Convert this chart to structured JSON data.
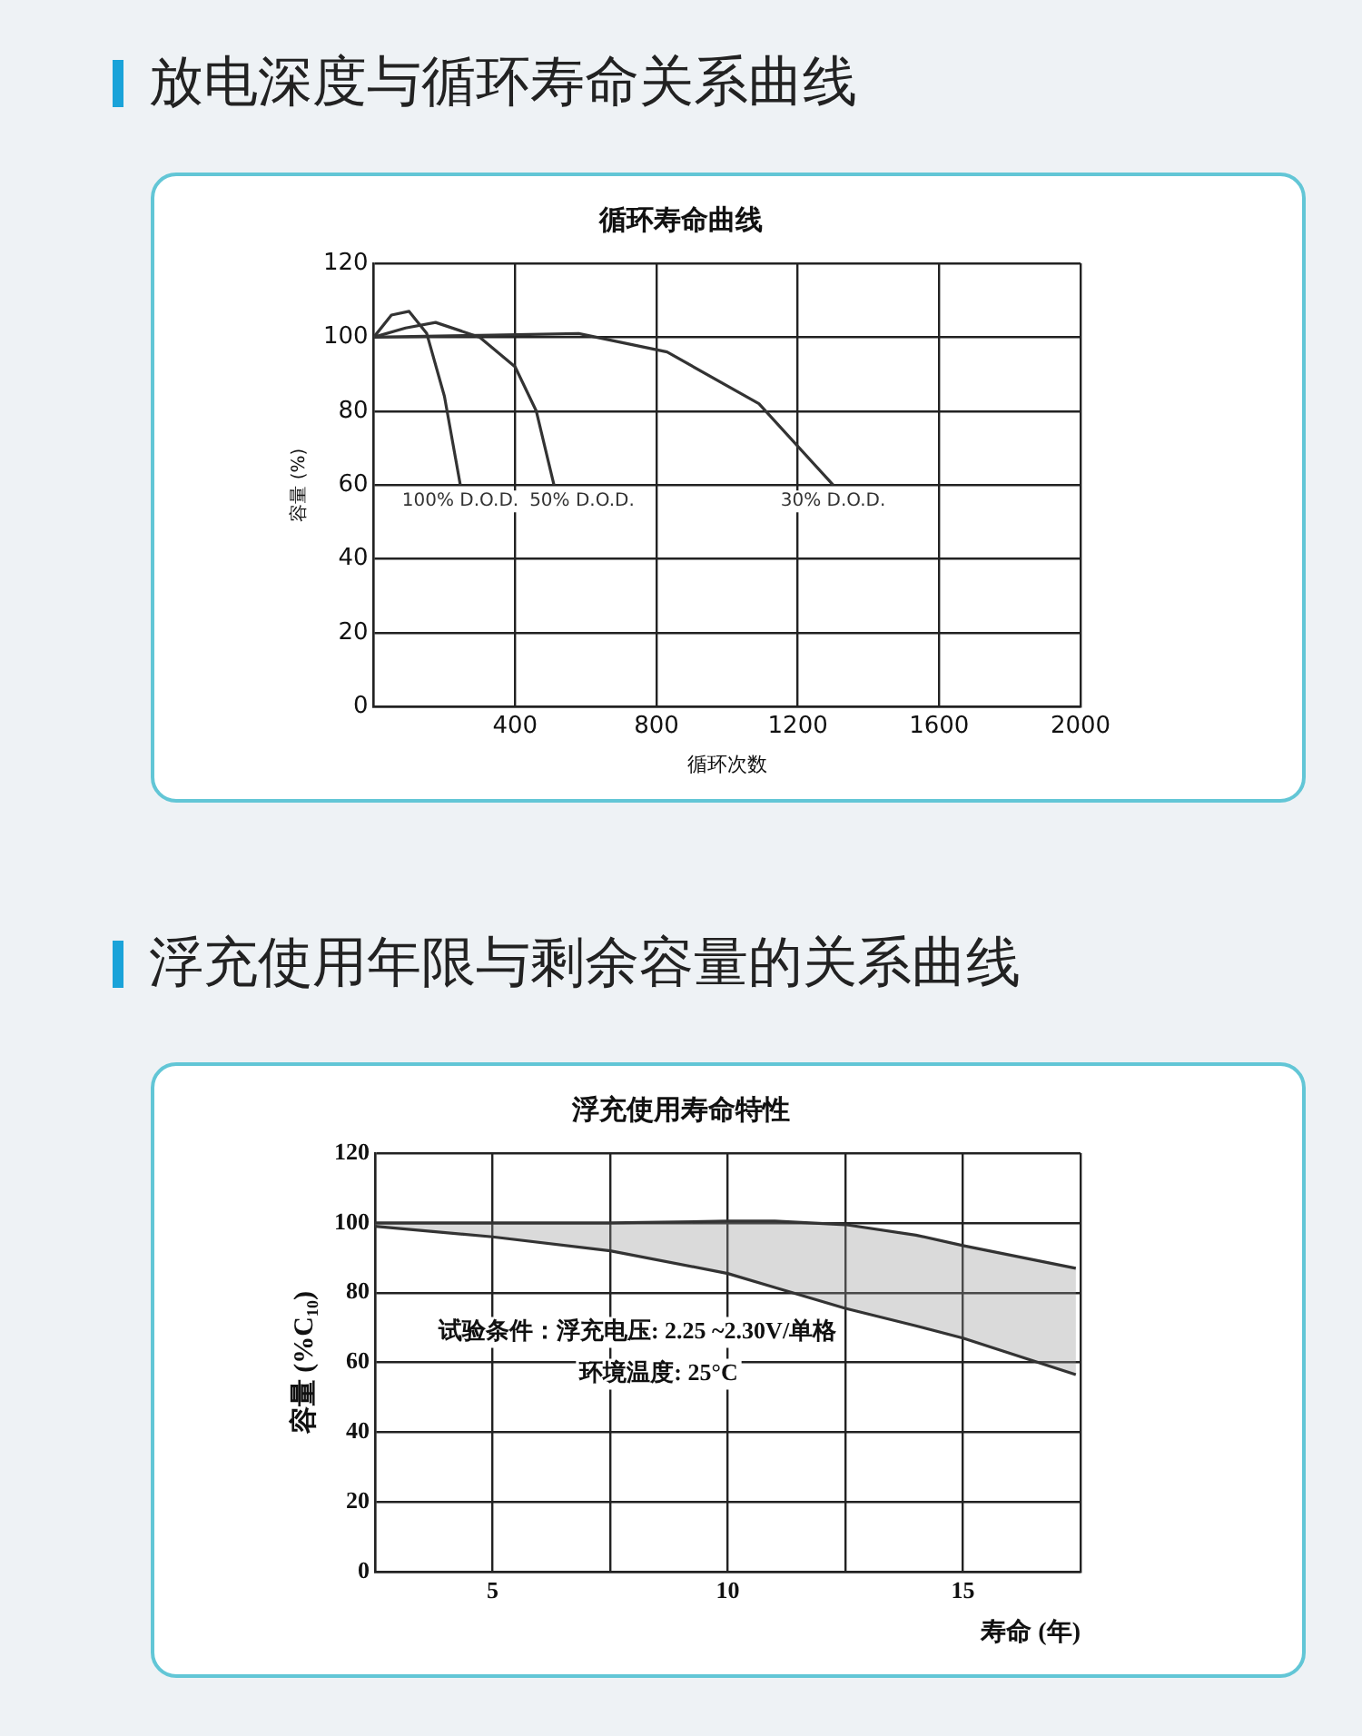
{
  "chart_data": [
    {
      "type": "line",
      "title": "放电深度与循环寿命关系曲线",
      "subtitle": "循环寿命曲线",
      "xlabel": "循环次数",
      "ylabel": "容量 (%)",
      "xlim": [
        0,
        2000
      ],
      "xticks": [
        {
          "value": 0,
          "label": null
        },
        400,
        800,
        1200,
        1600,
        2000
      ],
      "ylim": [
        0,
        120
      ],
      "yticks": [
        0,
        20,
        40,
        60,
        80,
        100,
        120
      ],
      "grid": true,
      "legend": false,
      "marker": "none",
      "line_style": "solid",
      "series": [
        {
          "name": "100% D.O.D.",
          "color": "#333333",
          "x": [
            0,
            50,
            100,
            150,
            200,
            245
          ],
          "values": [
            100,
            106,
            107,
            101,
            84,
            60
          ]
        },
        {
          "name": "50% D.O.D.",
          "color": "#333333",
          "x": [
            0,
            90,
            175,
            300,
            400,
            460,
            510
          ],
          "values": [
            100,
            102.5,
            104,
            100,
            92,
            80,
            60
          ]
        },
        {
          "name": "30% D.O.D.",
          "color": "#333333",
          "x": [
            0,
            300,
            580,
            830,
            1090,
            1300
          ],
          "values": [
            100,
            100.5,
            101,
            96,
            82,
            60
          ]
        }
      ]
    },
    {
      "type": "line",
      "title": "浮充使用年限与剩余容量的关系曲线",
      "subtitle": "浮充使用寿命特性",
      "xlabel": "寿命 (年)",
      "ylabel": "容量 (%C₁₀)",
      "xlim": [
        2.5,
        17.5
      ],
      "xticks": [
        {
          "value": 2.5,
          "label": null
        },
        5,
        {
          "value": 7.5,
          "label": null
        },
        10,
        {
          "value": 12.5,
          "label": null
        },
        15,
        {
          "value": 17.5,
          "label": null
        }
      ],
      "ylim": [
        0,
        120
      ],
      "yticks": [
        0,
        20,
        40,
        60,
        80,
        100,
        120
      ],
      "grid": true,
      "legend": false,
      "marker": "none",
      "line_style": "solid",
      "annotations": [
        "试验条件：浮充电压: 2.25 ~2.30V/单格",
        "环境温度: 25°C"
      ],
      "series": [
        {
          "color": "#333333",
          "x": [
            2.5,
            5,
            7.5,
            10,
            11,
            12.5,
            14,
            15,
            17.4
          ],
          "values": [
            100,
            100,
            100,
            100.5,
            100.5,
            99.5,
            96.5,
            93.5,
            87
          ],
          "lower": [
            99,
            96,
            92,
            85.5,
            81.5,
            75.5,
            70.5,
            67,
            56.5
          ],
          "upper": [
            100,
            100,
            100,
            100.5,
            100.5,
            99.5,
            96.5,
            93.5,
            87
          ]
        },
        {
          "type": "line",
          "color": "#333333",
          "x": [
            2.5,
            5,
            7.5,
            10,
            11,
            12.5,
            14,
            15,
            17.4
          ],
          "values": [
            99,
            96,
            92,
            85.5,
            81.5,
            75.5,
            70.5,
            67,
            56.5
          ]
        }
      ]
    }
  ]
}
